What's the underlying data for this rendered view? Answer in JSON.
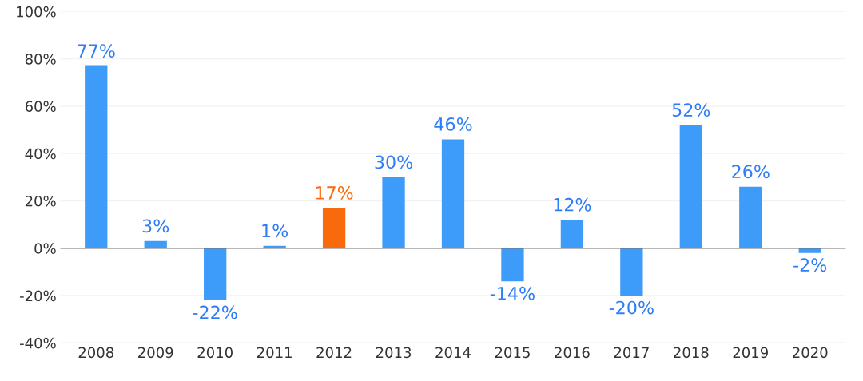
{
  "chart_data": {
    "type": "bar",
    "categories": [
      "2008",
      "2009",
      "2010",
      "2011",
      "2012",
      "2013",
      "2014",
      "2015",
      "2016",
      "2017",
      "2018",
      "2019",
      "2020"
    ],
    "values": [
      77,
      3,
      -22,
      1,
      17,
      30,
      46,
      -14,
      12,
      -20,
      52,
      26,
      -2
    ],
    "value_labels": [
      "77%",
      "3%",
      "-22%",
      "1%",
      "17%",
      "30%",
      "46%",
      "-14%",
      "12%",
      "-20%",
      "52%",
      "26%",
      "-2%"
    ],
    "colors": [
      "#3d9bfa",
      "#3d9bfa",
      "#3d9bfa",
      "#3d9bfa",
      "#f96a0c",
      "#3d9bfa",
      "#3d9bfa",
      "#3d9bfa",
      "#3d9bfa",
      "#3d9bfa",
      "#3d9bfa",
      "#3d9bfa",
      "#3d9bfa"
    ],
    "ylim": [
      -40,
      100
    ],
    "yticks": [
      {
        "value": -40,
        "label": "-40%"
      },
      {
        "value": -20,
        "label": "-20%"
      },
      {
        "value": 0,
        "label": "0%"
      },
      {
        "value": 20,
        "label": "20%"
      },
      {
        "value": 40,
        "label": "40%"
      },
      {
        "value": 60,
        "label": "60%"
      },
      {
        "value": 80,
        "label": "80%"
      },
      {
        "value": 100,
        "label": "100%"
      }
    ],
    "grid": "y"
  }
}
